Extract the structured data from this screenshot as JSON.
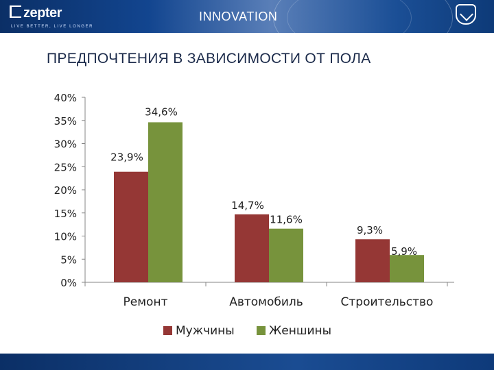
{
  "header": {
    "logo_text": "zepter",
    "tagline": "LIVE BETTER, LIVE LONGER",
    "center_title": "INNOVATION",
    "emblem_icon": "shield-emblem-icon"
  },
  "slide": {
    "title": "ПРЕДПОЧТЕНИЯ В ЗАВИСИМОСТИ ОТ ПОЛА"
  },
  "chart_data": {
    "type": "bar",
    "title": "",
    "xlabel": "",
    "ylabel": "",
    "categories": [
      "Ремонт",
      "Автомобиль",
      "Строительство"
    ],
    "series": [
      {
        "name": "Мужчины",
        "color": "#953735",
        "values": [
          23.9,
          14.7,
          9.3
        ],
        "labels": [
          "23,9%",
          "14,7%",
          "9,3%"
        ]
      },
      {
        "name": "Женшины",
        "color": "#77933c",
        "values": [
          34.6,
          11.6,
          5.9
        ],
        "labels": [
          "34,6%",
          "11,6%",
          "5,9%"
        ]
      }
    ],
    "ylim": [
      0,
      40
    ],
    "yticks": [
      0,
      5,
      10,
      15,
      20,
      25,
      30,
      35,
      40
    ],
    "ytick_labels": [
      "0%",
      "5%",
      "10%",
      "15%",
      "20%",
      "25%",
      "30%",
      "35%",
      "40%"
    ],
    "grid": false,
    "legend": "bottom"
  }
}
